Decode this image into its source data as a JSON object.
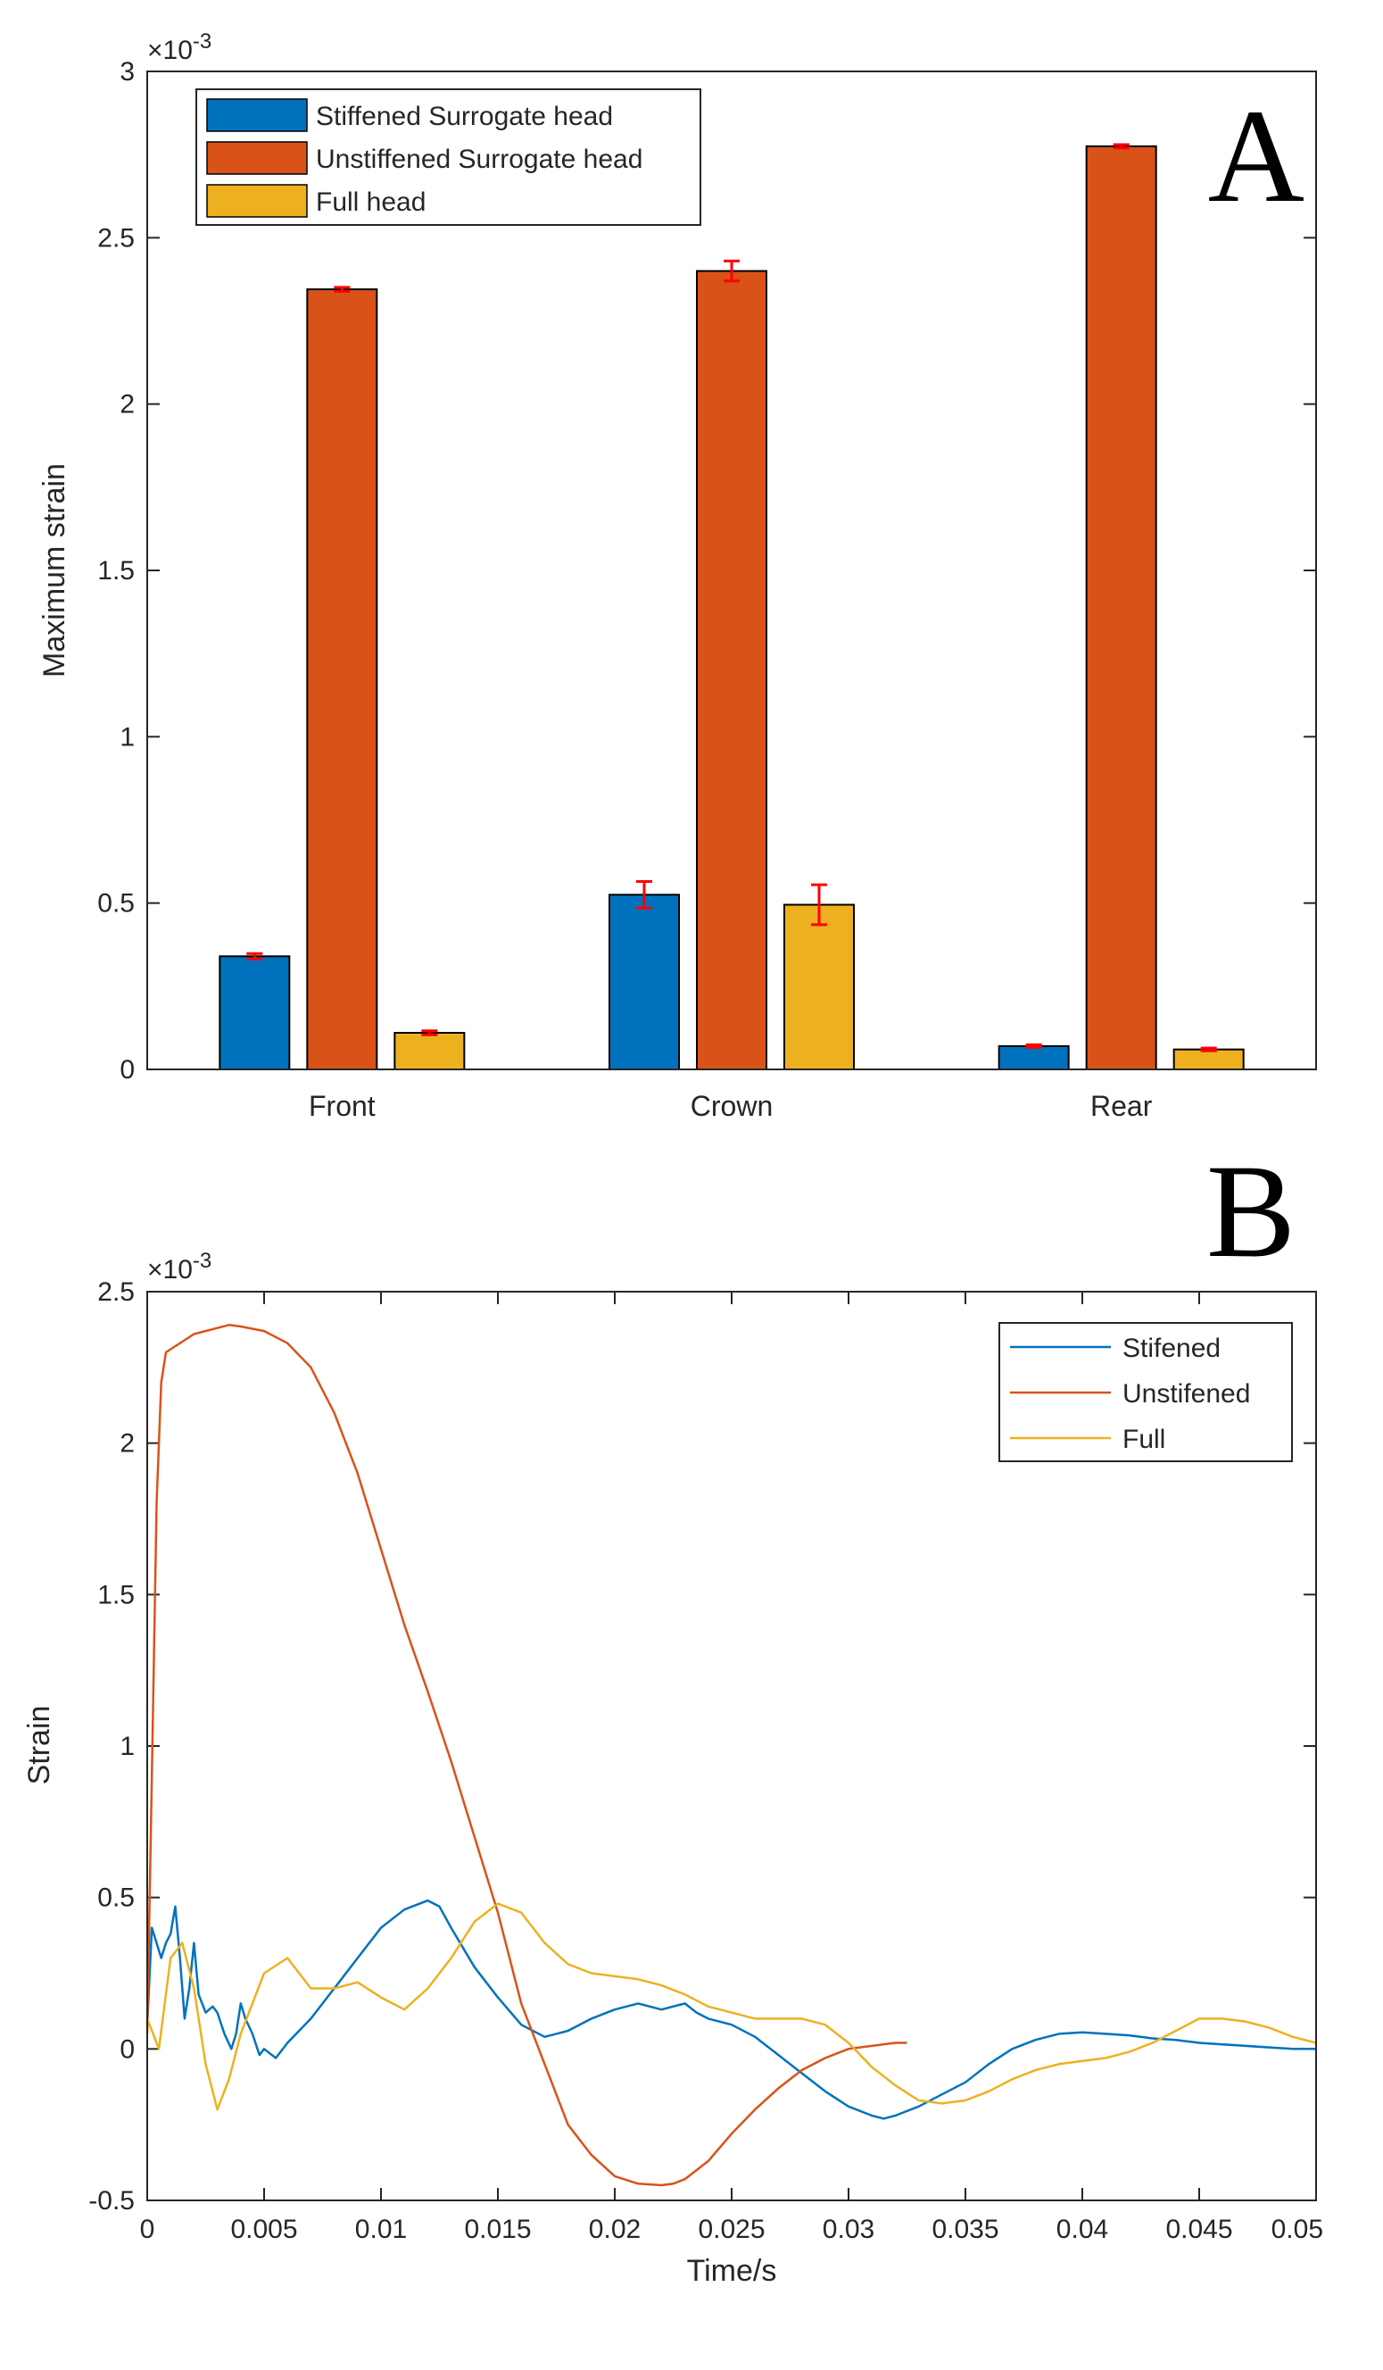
{
  "chart_data": [
    {
      "panel": "A",
      "type": "bar",
      "title": "",
      "xlabel": "",
      "ylabel": "Maximum strain",
      "exponent_label": "×10",
      "exponent_power": "-3",
      "ylim": [
        0,
        3
      ],
      "yticks": [
        0,
        0.5,
        1,
        1.5,
        2,
        2.5,
        3
      ],
      "ytick_labels": [
        "0",
        "0.5",
        "1",
        "1.5",
        "2",
        "2.5",
        "3"
      ],
      "categories": [
        "Front",
        "Crown",
        "Rear"
      ],
      "series": [
        {
          "name": "Stiffened Surrogate head",
          "color": "#0072BD",
          "values": [
            0.34,
            0.525,
            0.07
          ],
          "errors": [
            0.008,
            0.04,
            0.004
          ]
        },
        {
          "name": "Unstiffened Surrogate head",
          "color": "#D95319",
          "values": [
            2.345,
            2.4,
            2.775
          ],
          "errors": [
            0.006,
            0.03,
            0.005
          ]
        },
        {
          "name": "Full head",
          "color": "#EDB120",
          "values": [
            0.11,
            0.495,
            0.06
          ],
          "errors": [
            0.006,
            0.06,
            0.004
          ]
        }
      ],
      "error_bar_color": "#FF0000",
      "legend_position": "top-left",
      "panel_label": "A"
    },
    {
      "panel": "B",
      "type": "line",
      "title": "",
      "xlabel": "Time/s",
      "ylabel": "Strain",
      "exponent_label": "×10",
      "exponent_power": "-3",
      "xlim": [
        0,
        0.05
      ],
      "ylim": [
        -0.5,
        2.5
      ],
      "xticks": [
        0,
        0.005,
        0.01,
        0.015,
        0.02,
        0.025,
        0.03,
        0.035,
        0.04,
        0.045,
        0.05
      ],
      "xtick_labels": [
        "0",
        "0.005",
        "0.01",
        "0.015",
        "0.02",
        "0.025",
        "0.03",
        "0.035",
        "0.04",
        "0.045",
        "0.05"
      ],
      "yticks": [
        -0.5,
        0,
        0.5,
        1,
        1.5,
        2,
        2.5
      ],
      "ytick_labels": [
        "-0.5",
        "0",
        "0.5",
        "1",
        "1.5",
        "2",
        "2.5"
      ],
      "legend_position": "top-right",
      "panel_label": "B",
      "series": [
        {
          "name": "Stifened",
          "color": "#0072BD",
          "x": [
            0,
            0.0002,
            0.0004,
            0.0006,
            0.0008,
            0.001,
            0.0012,
            0.0014,
            0.0016,
            0.0018,
            0.002,
            0.0022,
            0.0025,
            0.0028,
            0.003,
            0.0033,
            0.0036,
            0.0038,
            0.004,
            0.0042,
            0.0045,
            0.0048,
            0.005,
            0.0055,
            0.006,
            0.007,
            0.008,
            0.009,
            0.01,
            0.011,
            0.012,
            0.0125,
            0.013,
            0.014,
            0.015,
            0.016,
            0.017,
            0.0175,
            0.018,
            0.019,
            0.02,
            0.021,
            0.022,
            0.023,
            0.0235,
            0.024,
            0.025,
            0.026,
            0.027,
            0.028,
            0.029,
            0.03,
            0.031,
            0.0315,
            0.032,
            0.033,
            0.034,
            0.035,
            0.036,
            0.037,
            0.038,
            0.039,
            0.04,
            0.041,
            0.042,
            0.043,
            0.044,
            0.045,
            0.046,
            0.047,
            0.048,
            0.049,
            0.05
          ],
          "y": [
            0.08,
            0.4,
            0.35,
            0.3,
            0.35,
            0.38,
            0.47,
            0.3,
            0.1,
            0.2,
            0.35,
            0.18,
            0.12,
            0.14,
            0.12,
            0.05,
            0.0,
            0.05,
            0.15,
            0.1,
            0.05,
            -0.02,
            0.0,
            -0.03,
            0.02,
            0.1,
            0.2,
            0.3,
            0.4,
            0.46,
            0.49,
            0.47,
            0.4,
            0.27,
            0.17,
            0.08,
            0.04,
            0.05,
            0.06,
            0.1,
            0.13,
            0.15,
            0.13,
            0.15,
            0.12,
            0.1,
            0.08,
            0.04,
            -0.02,
            -0.08,
            -0.14,
            -0.19,
            -0.22,
            -0.23,
            -0.22,
            -0.19,
            -0.15,
            -0.11,
            -0.05,
            0.0,
            0.03,
            0.05,
            0.055,
            0.05,
            0.045,
            0.035,
            0.03,
            0.02,
            0.015,
            0.01,
            0.005,
            0.0,
            0.0
          ]
        },
        {
          "name": "Unstifened",
          "color": "#D95319",
          "x": [
            0,
            0.0002,
            0.0004,
            0.0006,
            0.0008,
            0.001,
            0.002,
            0.003,
            0.0035,
            0.004,
            0.005,
            0.006,
            0.007,
            0.008,
            0.009,
            0.01,
            0.011,
            0.012,
            0.013,
            0.014,
            0.015,
            0.016,
            0.017,
            0.018,
            0.019,
            0.02,
            0.021,
            0.022,
            0.0225,
            0.023,
            0.024,
            0.025,
            0.026,
            0.027,
            0.028,
            0.029,
            0.03,
            0.031,
            0.032,
            0.0325
          ],
          "y": [
            0.05,
            0.9,
            1.8,
            2.2,
            2.3,
            2.31,
            2.36,
            2.38,
            2.39,
            2.385,
            2.37,
            2.33,
            2.25,
            2.1,
            1.9,
            1.65,
            1.4,
            1.18,
            0.95,
            0.7,
            0.45,
            0.15,
            -0.05,
            -0.25,
            -0.35,
            -0.42,
            -0.445,
            -0.45,
            -0.445,
            -0.43,
            -0.37,
            -0.28,
            -0.2,
            -0.13,
            -0.07,
            -0.03,
            0.0,
            0.01,
            0.02,
            0.02
          ]
        },
        {
          "name": "Full",
          "color": "#EDB120",
          "x": [
            0,
            0.0005,
            0.001,
            0.0015,
            0.002,
            0.0025,
            0.003,
            0.0035,
            0.004,
            0.005,
            0.006,
            0.007,
            0.008,
            0.009,
            0.01,
            0.011,
            0.012,
            0.013,
            0.014,
            0.015,
            0.016,
            0.017,
            0.018,
            0.019,
            0.02,
            0.021,
            0.022,
            0.023,
            0.024,
            0.025,
            0.026,
            0.027,
            0.028,
            0.029,
            0.03,
            0.031,
            0.032,
            0.033,
            0.034,
            0.035,
            0.036,
            0.037,
            0.038,
            0.039,
            0.04,
            0.041,
            0.042,
            0.043,
            0.044,
            0.045,
            0.046,
            0.047,
            0.048,
            0.049,
            0.05
          ],
          "y": [
            0.1,
            0.0,
            0.3,
            0.35,
            0.2,
            -0.05,
            -0.2,
            -0.1,
            0.05,
            0.25,
            0.3,
            0.2,
            0.2,
            0.22,
            0.17,
            0.13,
            0.2,
            0.3,
            0.42,
            0.48,
            0.45,
            0.35,
            0.28,
            0.25,
            0.24,
            0.23,
            0.21,
            0.18,
            0.14,
            0.12,
            0.1,
            0.1,
            0.1,
            0.08,
            0.02,
            -0.06,
            -0.12,
            -0.17,
            -0.18,
            -0.17,
            -0.14,
            -0.1,
            -0.07,
            -0.05,
            -0.04,
            -0.03,
            -0.01,
            0.02,
            0.06,
            0.1,
            0.1,
            0.09,
            0.07,
            0.04,
            0.02
          ]
        }
      ]
    }
  ]
}
